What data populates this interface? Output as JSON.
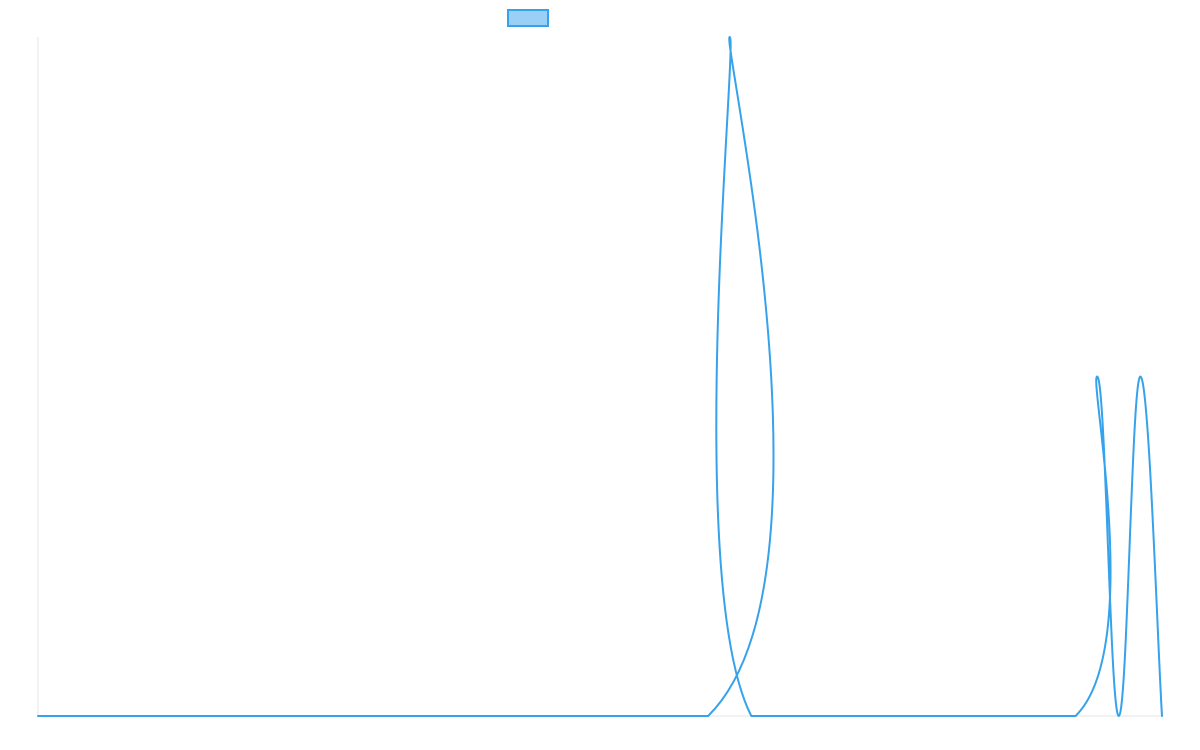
{
  "chart_data": {
    "type": "area",
    "title": "",
    "xlabel": "",
    "ylabel": "",
    "grid": false,
    "legend": {
      "placement": "top-center",
      "entries": [
        {
          "name": "",
          "fill": "#9ad0f5",
          "stroke": "#36a2eb"
        }
      ]
    },
    "x": [
      0,
      31,
      32,
      33,
      48,
      49,
      50,
      51,
      52
    ],
    "ylim": [
      0,
      2
    ],
    "xlim": [
      0,
      52
    ],
    "series": [
      {
        "name": "",
        "color": "#36a2eb",
        "values": [
          0,
          0,
          2,
          0,
          0,
          1,
          0,
          1,
          0
        ]
      }
    ]
  },
  "colors": {
    "line": "#36a2eb",
    "legend_fill": "#9ad0f5",
    "axis": "#e6e6e6"
  }
}
